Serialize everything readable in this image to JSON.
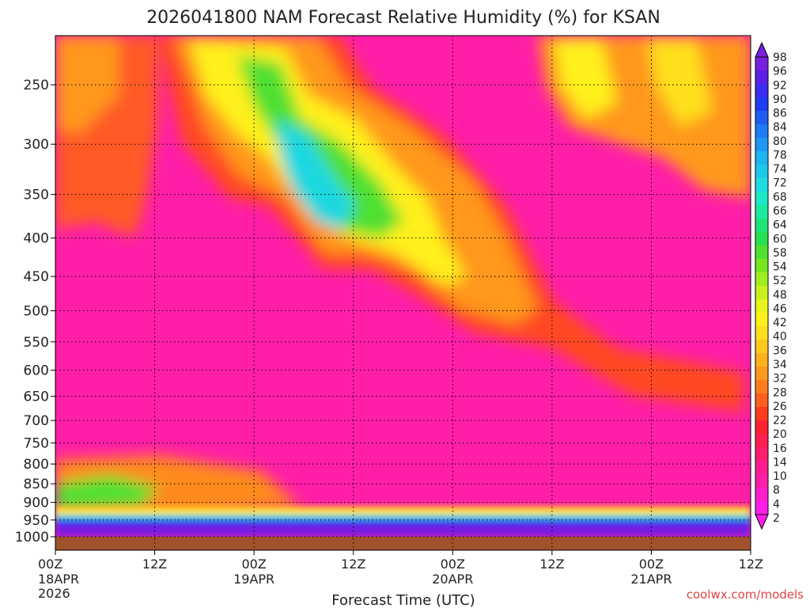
{
  "chart_data": {
    "type": "heatmap",
    "title": "2026041800 NAM Forecast Relative Humidity (%) for KSAN",
    "xlabel": "Forecast Time (UTC)",
    "ylabel": "",
    "y_ticks": [
      "250",
      "300",
      "350",
      "400",
      "450",
      "500",
      "550",
      "600",
      "650",
      "700",
      "750",
      "800",
      "850",
      "900",
      "950",
      "1000"
    ],
    "x_ticks": [
      {
        "hour": "00Z",
        "date": "18APR",
        "year": "2026"
      },
      {
        "hour": "12Z",
        "date": "",
        "year": ""
      },
      {
        "hour": "00Z",
        "date": "19APR",
        "year": ""
      },
      {
        "hour": "12Z",
        "date": "",
        "year": ""
      },
      {
        "hour": "00Z",
        "date": "20APR",
        "year": ""
      },
      {
        "hour": "12Z",
        "date": "",
        "year": ""
      },
      {
        "hour": "00Z",
        "date": "21APR",
        "year": ""
      },
      {
        "hour": "12Z",
        "date": "",
        "year": ""
      }
    ],
    "colorbar_labels": [
      "98",
      "96",
      "92",
      "90",
      "86",
      "84",
      "80",
      "78",
      "74",
      "72",
      "68",
      "66",
      "64",
      "60",
      "58",
      "54",
      "52",
      "48",
      "46",
      "42",
      "40",
      "36",
      "34",
      "32",
      "28",
      "26",
      "22",
      "20",
      "16",
      "14",
      "10",
      "8",
      "4",
      "2"
    ],
    "colorbar_colors": [
      "#7a1fe0",
      "#5a20e8",
      "#3a2cf0",
      "#1f3cf0",
      "#1e5cf2",
      "#1e7cf4",
      "#1e98f2",
      "#1eb4f0",
      "#1ec8e8",
      "#1edce0",
      "#1ee8c8",
      "#1ee8a0",
      "#1ee478",
      "#28e050",
      "#50e030",
      "#78e61e",
      "#a0ec1e",
      "#c8f01e",
      "#e8f41e",
      "#fff01e",
      "#ffe01e",
      "#ffc81e",
      "#ffb01e",
      "#ff981e",
      "#ff7c1e",
      "#ff601e",
      "#ff3c1e",
      "#ff2030",
      "#ff1e50",
      "#ff1e70",
      "#ff1e90",
      "#ff1ea8",
      "#ff1ec8",
      "#ff1ee8"
    ],
    "grid": true,
    "ground_color": "#a0522d",
    "credit": "coolwx.com/models"
  }
}
